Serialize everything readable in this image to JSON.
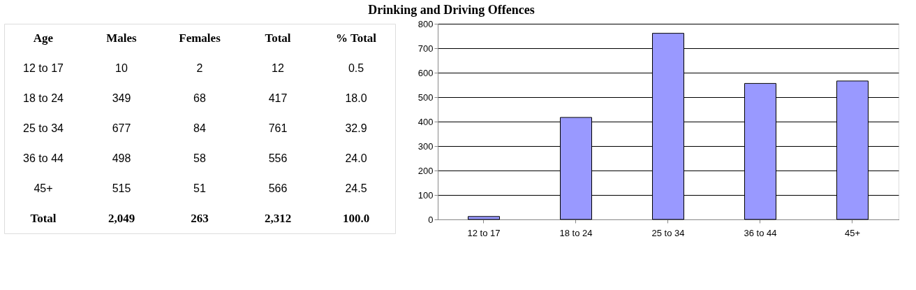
{
  "chart_data": [
    {
      "type": "other",
      "title": "Drinking and Driving Offences",
      "annotations": [
        "Age",
        "Males",
        "Females",
        "Total",
        "% Total",
        "12 to 17",
        "10",
        "2",
        "12",
        "0.5",
        "18 to 24",
        "349",
        "68",
        "417",
        "18.0",
        "25 to 34",
        "677",
        "84",
        "761",
        "32.9",
        "36 to 44",
        "498",
        "58",
        "556",
        "24.0",
        "45+",
        "515",
        "51",
        "566",
        "24.5",
        "Total",
        "2,049",
        "263",
        "2,312",
        "100.0"
      ]
    },
    {
      "type": "bar",
      "categories": [
        "12 to 17",
        "18 to 24",
        "25 to 34",
        "36 to 44",
        "45+"
      ],
      "values": [
        12,
        417,
        761,
        556,
        566
      ],
      "color": "#9999ff",
      "ylim": [
        0,
        800
      ],
      "yticks": [
        0,
        100,
        200,
        300,
        400,
        500,
        600,
        700,
        800
      ],
      "grid": "y",
      "legend": false
    }
  ]
}
